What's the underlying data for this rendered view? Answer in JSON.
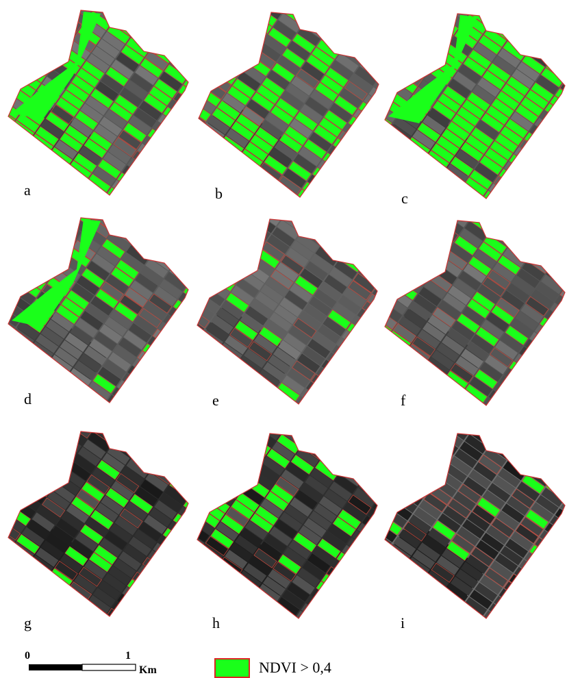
{
  "panels": [
    {
      "label": "a"
    },
    {
      "label": "b"
    },
    {
      "label": "c"
    },
    {
      "label": "d"
    },
    {
      "label": "e"
    },
    {
      "label": "f"
    },
    {
      "label": "g"
    },
    {
      "label": "h"
    },
    {
      "label": "i"
    }
  ],
  "scale_bar": {
    "start": "0",
    "end": "1",
    "unit": "Km"
  },
  "legend": {
    "label": "NDVI > 0,4"
  }
}
